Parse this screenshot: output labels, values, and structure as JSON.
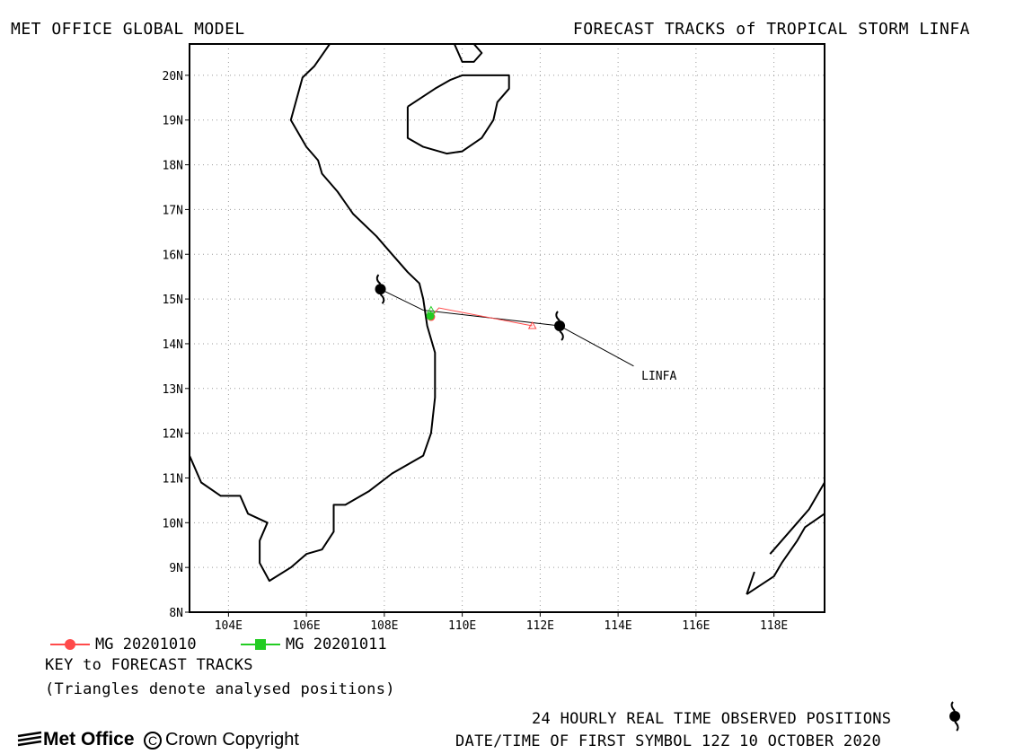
{
  "header": {
    "left_title": "MET OFFICE GLOBAL MODEL",
    "right_title": "FORECAST TRACKS of TROPICAL STORM LINFA"
  },
  "map": {
    "lon_range": [
      103,
      119.3
    ],
    "lat_range": [
      8,
      20.7
    ],
    "lon_ticks": [
      {
        "value": 104,
        "label": "104E"
      },
      {
        "value": 106,
        "label": "106E"
      },
      {
        "value": 108,
        "label": "108E"
      },
      {
        "value": 110,
        "label": "110E"
      },
      {
        "value": 112,
        "label": "112E"
      },
      {
        "value": 114,
        "label": "114E"
      },
      {
        "value": 116,
        "label": "116E"
      },
      {
        "value": 118,
        "label": "118E"
      }
    ],
    "lat_ticks": [
      {
        "value": 8,
        "label": "8N"
      },
      {
        "value": 9,
        "label": "9N"
      },
      {
        "value": 10,
        "label": "10N"
      },
      {
        "value": 11,
        "label": "11N"
      },
      {
        "value": 12,
        "label": "12N"
      },
      {
        "value": 13,
        "label": "13N"
      },
      {
        "value": 14,
        "label": "14N"
      },
      {
        "value": 15,
        "label": "15N"
      },
      {
        "value": 16,
        "label": "16N"
      },
      {
        "value": 17,
        "label": "17N"
      },
      {
        "value": 18,
        "label": "18N"
      },
      {
        "value": 19,
        "label": "19N"
      },
      {
        "value": 20,
        "label": "20N"
      }
    ],
    "grid": "dotted",
    "storm_label": "LINFA",
    "storm_label_position": [
      114.6,
      13.2
    ],
    "observed_track": [
      [
        114.4,
        13.5
      ],
      [
        112.5,
        14.4
      ],
      [
        109.0,
        14.75
      ],
      [
        107.9,
        15.22
      ]
    ],
    "observed_symbols": [
      [
        112.5,
        14.4
      ],
      [
        107.9,
        15.22
      ]
    ],
    "forecast_tracks": [
      {
        "name": "MG 20201010",
        "color": "#ff4a4a",
        "points": [
          [
            111.8,
            14.4
          ],
          [
            109.4,
            14.8
          ],
          [
            109.2,
            14.6
          ]
        ],
        "analysed_triangle": [
          111.8,
          14.4
        ],
        "end_marker": [
          109.2,
          14.6
        ]
      },
      {
        "name": "MG 20201011",
        "color": "#22cc22",
        "points": [
          [
            109.2,
            14.75
          ],
          [
            109.18,
            14.62
          ]
        ],
        "analysed_triangle": [
          109.2,
          14.75
        ],
        "end_marker": [
          109.18,
          14.62
        ]
      }
    ],
    "coastlines": [
      [
        [
          106.6,
          20.7
        ],
        [
          106.2,
          20.2
        ],
        [
          105.9,
          19.95
        ],
        [
          105.6,
          19.0
        ],
        [
          106.0,
          18.4
        ],
        [
          106.3,
          18.1
        ],
        [
          106.4,
          17.8
        ],
        [
          106.8,
          17.4
        ],
        [
          107.2,
          16.9
        ],
        [
          107.8,
          16.4
        ],
        [
          108.2,
          16.0
        ],
        [
          108.6,
          15.6
        ],
        [
          108.9,
          15.35
        ],
        [
          109.0,
          15.0
        ],
        [
          109.1,
          14.4
        ],
        [
          109.3,
          13.8
        ],
        [
          109.3,
          12.8
        ],
        [
          109.2,
          12.0
        ],
        [
          109.0,
          11.5
        ],
        [
          108.2,
          11.1
        ],
        [
          107.6,
          10.7
        ],
        [
          107.0,
          10.4
        ],
        [
          106.7,
          10.4
        ],
        [
          106.7,
          9.8
        ],
        [
          106.4,
          9.4
        ],
        [
          106.0,
          9.3
        ],
        [
          105.6,
          9.0
        ],
        [
          105.05,
          8.7
        ],
        [
          104.8,
          9.1
        ],
        [
          104.8,
          9.6
        ],
        [
          105.0,
          10.0
        ],
        [
          104.5,
          10.2
        ],
        [
          104.3,
          10.6
        ],
        [
          103.8,
          10.6
        ],
        [
          103.3,
          10.9
        ],
        [
          103.0,
          11.5
        ]
      ],
      [
        [
          108.6,
          19.3
        ],
        [
          108.6,
          18.6
        ],
        [
          109.0,
          18.4
        ],
        [
          109.6,
          18.25
        ],
        [
          110.0,
          18.3
        ],
        [
          110.5,
          18.6
        ],
        [
          110.8,
          19.0
        ],
        [
          110.9,
          19.4
        ],
        [
          111.2,
          19.7
        ],
        [
          111.2,
          20.0
        ],
        [
          110.5,
          20.0
        ],
        [
          110.0,
          20.0
        ],
        [
          109.7,
          19.9
        ],
        [
          109.3,
          19.7
        ],
        [
          108.6,
          19.3
        ]
      ],
      [
        [
          109.8,
          20.7
        ],
        [
          110.0,
          20.3
        ],
        [
          110.3,
          20.3
        ],
        [
          110.5,
          20.5
        ],
        [
          110.3,
          20.7
        ]
      ],
      [
        [
          117.3,
          8.4
        ],
        [
          118.0,
          8.8
        ],
        [
          118.2,
          9.1
        ],
        [
          118.6,
          9.6
        ],
        [
          118.8,
          9.9
        ],
        [
          119.3,
          10.2
        ]
      ],
      [
        [
          117.9,
          9.3
        ],
        [
          118.4,
          9.8
        ],
        [
          118.9,
          10.3
        ],
        [
          119.3,
          10.9
        ]
      ],
      [
        [
          117.3,
          8.4
        ],
        [
          117.5,
          8.9
        ]
      ]
    ]
  },
  "legend": {
    "items": [
      {
        "label": "MG 20201010",
        "color": "#ff4a4a",
        "marker": "circle"
      },
      {
        "label": "MG 20201011",
        "color": "#22cc22",
        "marker": "square"
      }
    ],
    "key_title": "KEY to FORECAST TRACKS",
    "key_note": "(Triangles denote analysed positions)"
  },
  "footer": {
    "observed_note": "24 HOURLY REAL TIME OBSERVED POSITIONS",
    "first_symbol": "DATE/TIME OF FIRST SYMBOL 12Z 10 OCTOBER 2020",
    "logo_text": "Met Office",
    "copyright_symbol": "C",
    "copyright_text": "Crown Copyright"
  }
}
